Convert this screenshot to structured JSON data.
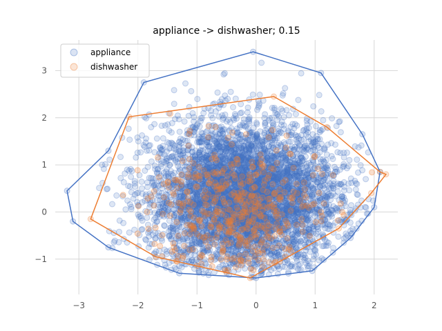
{
  "chart_data": {
    "type": "scatter",
    "title": "appliance -> dishwasher; 0.15",
    "xlabel": "",
    "ylabel": "",
    "xlim": [
      -3.4,
      2.4
    ],
    "ylim": [
      -1.75,
      3.65
    ],
    "xticks": [
      -3,
      -2,
      -1,
      0,
      1,
      2
    ],
    "yticks": [
      -1,
      0,
      1,
      2,
      3
    ],
    "xtick_labels": [
      "−3",
      "−2",
      "−1",
      "0",
      "1",
      "2"
    ],
    "ytick_labels": [
      "−1",
      "0",
      "1",
      "2",
      "3"
    ],
    "grid": true,
    "legend_position": "top-left",
    "series": [
      {
        "name": "appliance",
        "color": "#4472c4",
        "point_count": 5000,
        "center": [
          -0.2,
          0.3
        ],
        "spread": [
          0.8,
          0.8
        ],
        "hull": [
          [
            -0.05,
            3.4
          ],
          [
            1.1,
            2.95
          ],
          [
            1.8,
            1.65
          ],
          [
            2.1,
            0.85
          ],
          [
            2.0,
            0.1
          ],
          [
            1.6,
            -0.55
          ],
          [
            0.95,
            -1.25
          ],
          [
            0.0,
            -1.4
          ],
          [
            -1.3,
            -1.3
          ],
          [
            -2.5,
            -0.75
          ],
          [
            -3.1,
            -0.2
          ],
          [
            -3.2,
            0.45
          ],
          [
            -2.5,
            1.3
          ],
          [
            -1.9,
            2.75
          ]
        ]
      },
      {
        "name": "dishwasher",
        "color": "#ed7d31",
        "point_count": 500,
        "center": [
          -0.35,
          0.0
        ],
        "spread": [
          0.7,
          0.7
        ],
        "hull": [
          [
            0.3,
            2.45
          ],
          [
            1.2,
            1.8
          ],
          [
            2.1,
            0.85
          ],
          [
            2.2,
            0.8
          ],
          [
            1.95,
            0.4
          ],
          [
            1.4,
            -0.35
          ],
          [
            0.4,
            -1.05
          ],
          [
            -0.1,
            -1.4
          ],
          [
            -1.7,
            -0.95
          ],
          [
            -2.8,
            -0.15
          ],
          [
            -2.15,
            2.02
          ]
        ]
      }
    ]
  }
}
